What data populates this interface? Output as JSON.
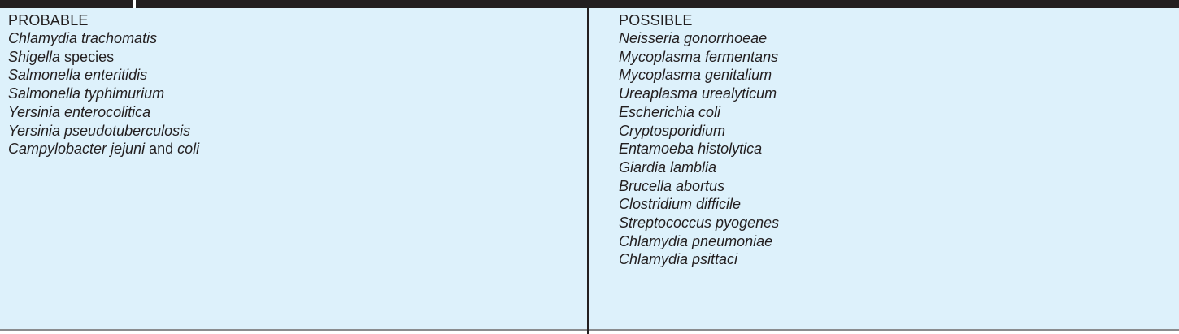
{
  "table": {
    "probable": {
      "heading": "PROBABLE",
      "items": [
        [
          {
            "t": "Chlamydia trachomatis",
            "i": true
          }
        ],
        [
          {
            "t": "Shigella",
            "i": true
          },
          {
            "t": " species",
            "i": false
          }
        ],
        [
          {
            "t": "Salmonella enteritidis",
            "i": true
          }
        ],
        [
          {
            "t": "Salmonella typhimurium",
            "i": true
          }
        ],
        [
          {
            "t": "Yersinia enterocolitica",
            "i": true
          }
        ],
        [
          {
            "t": "Yersinia pseudotuberculosis",
            "i": true
          }
        ],
        [
          {
            "t": "Campylobacter jejuni",
            "i": true
          },
          {
            "t": " and ",
            "i": false
          },
          {
            "t": "coli",
            "i": true
          }
        ]
      ]
    },
    "possible": {
      "heading": "POSSIBLE",
      "items": [
        [
          {
            "t": "Neisseria gonorrhoeae",
            "i": true
          }
        ],
        [
          {
            "t": "Mycoplasma fermentans",
            "i": true
          }
        ],
        [
          {
            "t": "Mycoplasma genitalium",
            "i": true
          }
        ],
        [
          {
            "t": "Ureaplasma urealyticum",
            "i": true
          }
        ],
        [
          {
            "t": "Escherichia coli",
            "i": true
          }
        ],
        [
          {
            "t": "Cryptosporidium",
            "i": true
          }
        ],
        [
          {
            "t": "Entamoeba histolytica",
            "i": true
          }
        ],
        [
          {
            "t": "Giardia lamblia",
            "i": true
          }
        ],
        [
          {
            "t": "Brucella abortus",
            "i": true
          }
        ],
        [
          {
            "t": "Clostridium difficile",
            "i": true
          }
        ],
        [
          {
            "t": "Streptococcus pyogenes",
            "i": true
          }
        ],
        [
          {
            "t": "Chlamydia pneumoniae",
            "i": true
          }
        ],
        [
          {
            "t": "Chlamydia psittaci",
            "i": true
          }
        ]
      ]
    }
  },
  "colors": {
    "panel_background": "#ddf1fb",
    "rule_dark": "#231f20",
    "rule_gray": "#8a8c8e",
    "text": "#231f20"
  }
}
